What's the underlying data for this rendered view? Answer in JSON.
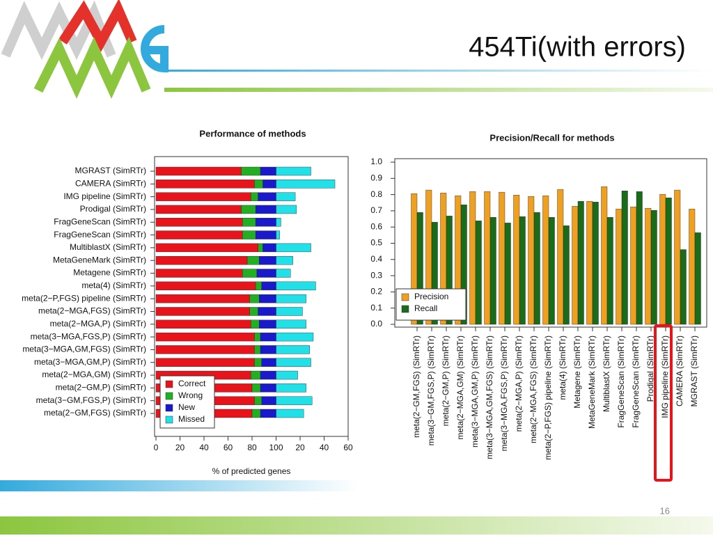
{
  "slide": {
    "title": "454Ti(with errors)",
    "page_number": "16"
  },
  "chart_data": [
    {
      "type": "bar",
      "orientation": "horizontal",
      "stacked": true,
      "title": "Performance of methods",
      "x_label": "% of predicted genes",
      "categories": [
        "MGRAST (SimRTr)",
        "CAMERA (SimRTr)",
        "IMG pipeline (SimRTr)",
        "Prodigal (SimRTr)",
        "FragGeneScan (SimRTr)",
        "FragGeneScan (SimRTr)",
        "MultiblastX (SimRTr)",
        "MetaGeneMark (SimRTr)",
        "Metagene (SimRTr)",
        "meta(4) (SimRTr)",
        "meta(2−P,FGS) pipeline (SimRTr)",
        "meta(2−MGA,FGS) (SimRTr)",
        "meta(2−MGA,P) (SimRTr)",
        "meta(3−MGA,FGS,P) (SimRTr)",
        "meta(3−MGA,GM,FGS) (SimRTr)",
        "meta(3−MGA,GM,P) (SimRTr)",
        "meta(2−MGA,GM) (SimRTr)",
        "meta(2−GM,P) (SimRTr)",
        "meta(3−GM,FGS,P) (SimRTr)",
        "meta(2−GM,FGS) (SimRTr)"
      ],
      "series": [
        {
          "name": "Correct",
          "color": "#e8141c",
          "values": [
            71,
            82,
            79,
            71,
            72,
            72,
            85,
            76,
            72,
            83,
            78,
            78,
            79,
            82,
            82,
            82,
            79,
            80,
            82,
            80
          ]
        },
        {
          "name": "Wrong",
          "color": "#22b022",
          "values": [
            16,
            7,
            6,
            12,
            11,
            11,
            4,
            10,
            12,
            5,
            8,
            7,
            7,
            5,
            5,
            6,
            8,
            7,
            6,
            7
          ]
        },
        {
          "name": "New",
          "color": "#1a1acc",
          "values": [
            13,
            11,
            15,
            17,
            17,
            17,
            11,
            14,
            16,
            12,
            14,
            15,
            14,
            13,
            13,
            12,
            13,
            13,
            12,
            13
          ]
        },
        {
          "name": "Missed",
          "color": "#22e0e8",
          "values": [
            29,
            49,
            16,
            17,
            4,
            3,
            29,
            14,
            12,
            33,
            25,
            22,
            25,
            31,
            28,
            29,
            18,
            25,
            30,
            23
          ]
        }
      ],
      "xlim": [
        0,
        160
      ],
      "xticks": [
        0,
        20,
        40,
        60,
        80,
        100,
        {
          "value": 120,
          "label": "20"
        },
        {
          "value": 140,
          "label": "40"
        },
        {
          "value": 160,
          "label": "60"
        }
      ],
      "legend": "lower left"
    },
    {
      "type": "bar",
      "orientation": "vertical",
      "stacked": false,
      "title": "Precision/Recall for methods",
      "categories": [
        "meta(2−GM,FGS) (SimRTr)",
        "meta(3−GM,FGS,P) (SimRTr)",
        "meta(2−GM,P) (SimRTr)",
        "meta(2−MGA,GM) (SimRTr)",
        "meta(3−MGA,GM,P) (SimRTr)",
        "meta(3−MGA,GM,FGS) (SimRTr)",
        "meta(3−MGA,FGS,P) (SimRTr)",
        "meta(2−MGA,P) (SimRTr)",
        "meta(2−MGA,FGS) (SimRTr)",
        "meta(2−P,FGS) pipeline (SimRTr)",
        "meta(4) (SimRTr)",
        "Metagene (SimRTr)",
        "MetaGeneMark (SimRTr)",
        "MultiblastX (SimRTr)",
        "FragGeneScan (SimRTr)",
        "FragGeneScan (SimRTr)",
        "Prodigal (SimRTr)",
        "IMG pipeline (SimRTr)",
        "CAMERA (SimRTr)",
        "MGRAST (SimRTr)"
      ],
      "series": [
        {
          "name": "Precision",
          "color": "#f0a020",
          "values": [
            0.806,
            0.828,
            0.81,
            0.793,
            0.819,
            0.819,
            0.815,
            0.797,
            0.789,
            0.793,
            0.832,
            0.728,
            0.759,
            0.849,
            0.711,
            0.724,
            0.716,
            0.802,
            0.828,
            0.711
          ]
        },
        {
          "name": "Recall",
          "color": "#1a6b1a",
          "values": [
            0.69,
            0.63,
            0.668,
            0.737,
            0.638,
            0.66,
            0.625,
            0.664,
            0.69,
            0.66,
            0.608,
            0.759,
            0.754,
            0.66,
            0.823,
            0.819,
            0.703,
            0.78,
            0.461,
            0.565
          ]
        }
      ],
      "ylim": [
        0,
        1
      ],
      "yticks": [
        {
          "value": 0,
          "label": "0.0"
        },
        0.1,
        0.2,
        0.3,
        0.4,
        0.5,
        0.6,
        0.7,
        0.8,
        0.9,
        {
          "value": 1,
          "label": "1.0"
        }
      ],
      "legend": "lower left"
    }
  ]
}
